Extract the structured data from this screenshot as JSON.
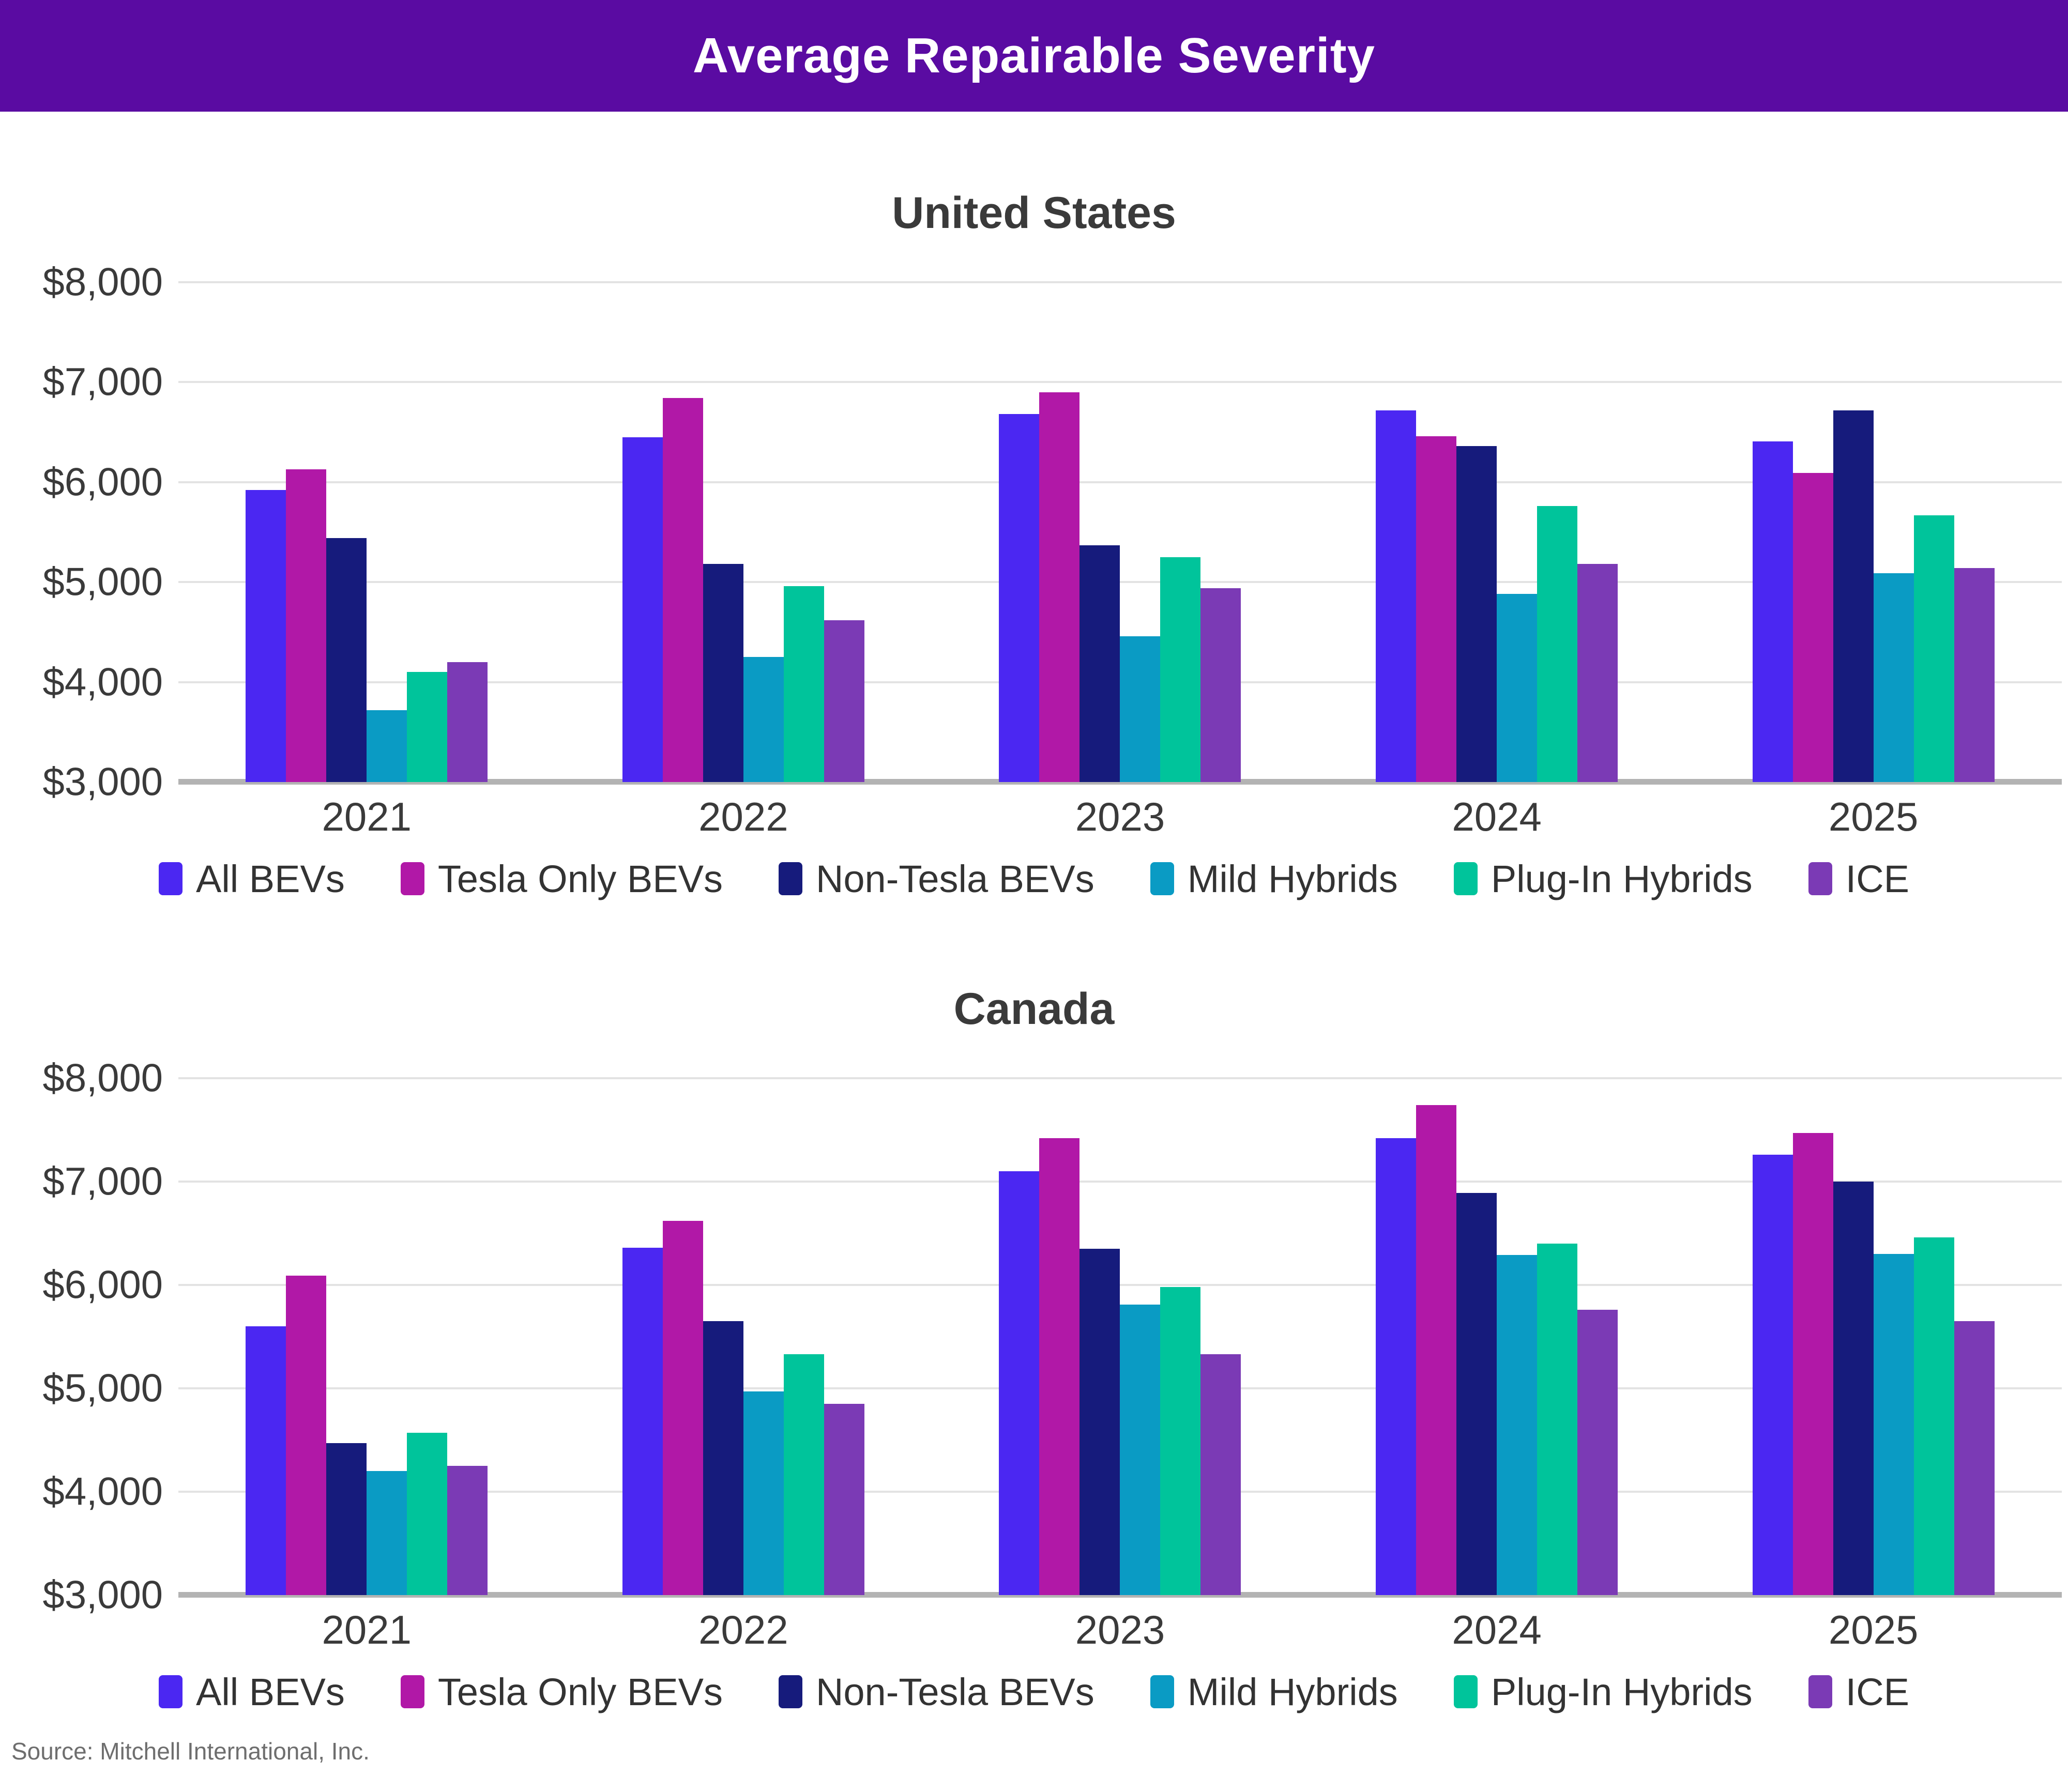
{
  "header": {
    "title": "Average Repairable Severity"
  },
  "source_text": "Source: Mitchell International, Inc.",
  "colors": {
    "header_bg": "#5A0BA2",
    "all_bevs": "#4B27F2",
    "tesla_only_bevs": "#B118A7",
    "non_tesla_bevs": "#161B7C",
    "mild_hybrids": "#0A9BC4",
    "plug_in_hybrids": "#00C49B",
    "ice": "#7B3AB5",
    "gridline": "#E3E3E3",
    "axis_line": "#B3B3B3"
  },
  "legend": [
    {
      "label": "All BEVs",
      "color": "#4B27F2"
    },
    {
      "label": "Tesla Only BEVs",
      "color": "#B118A7"
    },
    {
      "label": "Non-Tesla BEVs",
      "color": "#161B7C"
    },
    {
      "label": "Mild Hybrids",
      "color": "#0A9BC4"
    },
    {
      "label": "Plug-In Hybrids",
      "color": "#00C49B"
    },
    {
      "label": "ICE",
      "color": "#7B3AB5"
    }
  ],
  "chart_data": [
    {
      "type": "bar",
      "title": "United States",
      "categories": [
        "2021",
        "2022",
        "2023",
        "2024",
        "2025"
      ],
      "ylim": [
        3000,
        8000
      ],
      "yticks": [
        "$8,000",
        "$7,000",
        "$6,000",
        "$5,000",
        "$4,000",
        "$3,000"
      ],
      "grid": true,
      "legend_position": "bottom",
      "series": [
        {
          "name": "All BEVs",
          "color": "#4B27F2",
          "values": [
            5920,
            6450,
            6680,
            6720,
            6410
          ]
        },
        {
          "name": "Tesla Only BEVs",
          "color": "#B118A7",
          "values": [
            6130,
            6840,
            6900,
            6460,
            6090
          ]
        },
        {
          "name": "Non-Tesla BEVs",
          "color": "#161B7C",
          "values": [
            5440,
            5180,
            5370,
            6360,
            6720
          ]
        },
        {
          "name": "Mild Hybrids",
          "color": "#0A9BC4",
          "values": [
            3720,
            4250,
            4460,
            4880,
            5090
          ]
        },
        {
          "name": "Plug-In Hybrids",
          "color": "#00C49B",
          "values": [
            4100,
            4960,
            5250,
            5760,
            5670
          ]
        },
        {
          "name": "ICE",
          "color": "#7B3AB5",
          "values": [
            4200,
            4620,
            4940,
            5180,
            5140
          ]
        }
      ]
    },
    {
      "type": "bar",
      "title": "Canada",
      "categories": [
        "2021",
        "2022",
        "2023",
        "2024",
        "2025"
      ],
      "ylim": [
        3000,
        8000
      ],
      "yticks": [
        "$8,000",
        "$7,000",
        "$6,000",
        "$5,000",
        "$4,000",
        "$3,000"
      ],
      "grid": true,
      "legend_position": "bottom",
      "series": [
        {
          "name": "All BEVs",
          "color": "#4B27F2",
          "values": [
            5600,
            6360,
            7100,
            7420,
            7260
          ]
        },
        {
          "name": "Tesla Only BEVs",
          "color": "#B118A7",
          "values": [
            6090,
            6620,
            7420,
            7740,
            7470
          ]
        },
        {
          "name": "Non-Tesla BEVs",
          "color": "#161B7C",
          "values": [
            4470,
            5650,
            6350,
            6890,
            7000
          ]
        },
        {
          "name": "Mild Hybrids",
          "color": "#0A9BC4",
          "values": [
            4200,
            4970,
            5810,
            6290,
            6300
          ]
        },
        {
          "name": "Plug-In Hybrids",
          "color": "#00C49B",
          "values": [
            4570,
            5330,
            5980,
            6400,
            6460
          ]
        },
        {
          "name": "ICE",
          "color": "#7B3AB5",
          "values": [
            4250,
            4850,
            5330,
            5760,
            5650
          ]
        }
      ]
    }
  ]
}
